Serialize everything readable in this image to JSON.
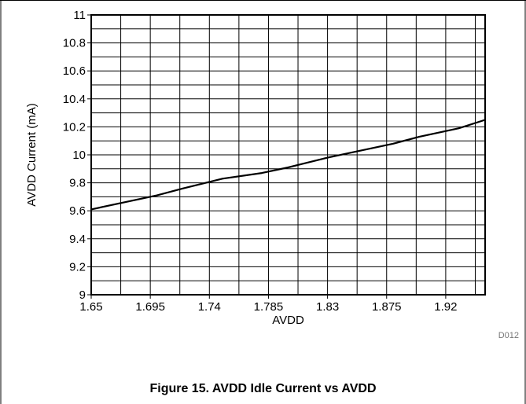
{
  "chart_data": {
    "type": "line",
    "title": "Figure 15. AVDD Idle Current vs AVDD",
    "xlabel": "AVDD",
    "ylabel": "AVDD Current (mA)",
    "code": "D012",
    "xlim": [
      1.65,
      1.95
    ],
    "ylim": [
      9,
      11
    ],
    "x_ticks": [
      1.65,
      1.695,
      1.74,
      1.785,
      1.83,
      1.875,
      1.92
    ],
    "x_tick_labels": [
      "1.65",
      "1.695",
      "1.74",
      "1.785",
      "1.83",
      "1.875",
      "1.92"
    ],
    "y_ticks": [
      9,
      9.2,
      9.4,
      9.6,
      9.8,
      10,
      10.2,
      10.4,
      10.6,
      10.8,
      11
    ],
    "y_tick_labels": [
      "9",
      "9.2",
      "9.4",
      "9.6",
      "9.8",
      "10",
      "10.2",
      "10.4",
      "10.6",
      "10.8",
      "11"
    ],
    "grid": true,
    "series": [
      {
        "x": [
          1.65,
          1.68,
          1.7,
          1.72,
          1.75,
          1.78,
          1.8,
          1.83,
          1.85,
          1.88,
          1.9,
          1.93,
          1.95
        ],
        "y": [
          9.61,
          9.67,
          9.71,
          9.76,
          9.83,
          9.87,
          9.91,
          9.98,
          10.02,
          10.08,
          10.13,
          10.19,
          10.25
        ],
        "color": "#000000"
      }
    ]
  }
}
